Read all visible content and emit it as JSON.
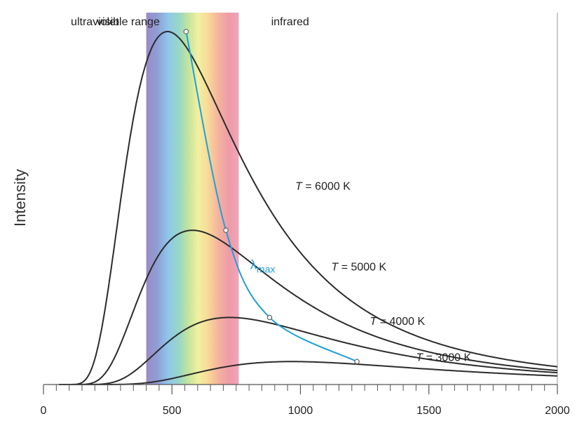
{
  "chart_data": {
    "type": "line",
    "title": "",
    "xlabel": "",
    "ylabel": "Intensity",
    "xlim": [
      0,
      2000
    ],
    "ylim": [
      0,
      1
    ],
    "x_ticks": [
      0,
      500,
      1000,
      1500,
      2000
    ],
    "minor_tick_step": 50,
    "grid": false,
    "regions": [
      {
        "label": "ultraviolet",
        "x_center": 200
      },
      {
        "label": "visible range",
        "x_range": [
          400,
          760
        ],
        "x_center": 330
      },
      {
        "label": "infrared",
        "x_center": 960
      }
    ],
    "series": [
      {
        "name": "T = 6000 K",
        "temperature_K": 6000,
        "peak": {
          "x": 555,
          "y": 1.0
        }
      },
      {
        "name": "T = 5000 K",
        "temperature_K": 5000,
        "peak": {
          "x": 710,
          "y": 0.437
        }
      },
      {
        "name": "T = 4000 K",
        "temperature_K": 4000,
        "peak": {
          "x": 880,
          "y": 0.19
        }
      },
      {
        "name": "T = 3000 K",
        "temperature_K": 3000,
        "peak": {
          "x": 1220,
          "y": 0.065
        }
      }
    ],
    "series_labels": [
      {
        "prefix": "T",
        "rest": " = 6000 K",
        "x": 980,
        "y": 0.552
      },
      {
        "prefix": "T",
        "rest": " = 5000 K",
        "x": 1120,
        "y": 0.323
      },
      {
        "prefix": "T",
        "rest": " = 4000 K",
        "x": 1270,
        "y": 0.169
      },
      {
        "prefix": "T",
        "rest": " = 3000 K",
        "x": 1450,
        "y": 0.067
      }
    ],
    "lambda_max_curve": {
      "label_main": "λ",
      "label_sub": "max",
      "label_x": 805,
      "label_y": 0.327,
      "points": [
        [
          555,
          1.0
        ],
        [
          710,
          0.437
        ],
        [
          880,
          0.19
        ],
        [
          1220,
          0.065
        ]
      ]
    },
    "colors": {
      "curves": "#2b2b2b",
      "lambda_max": "#1fa0dc",
      "axis": "#555555"
    }
  }
}
